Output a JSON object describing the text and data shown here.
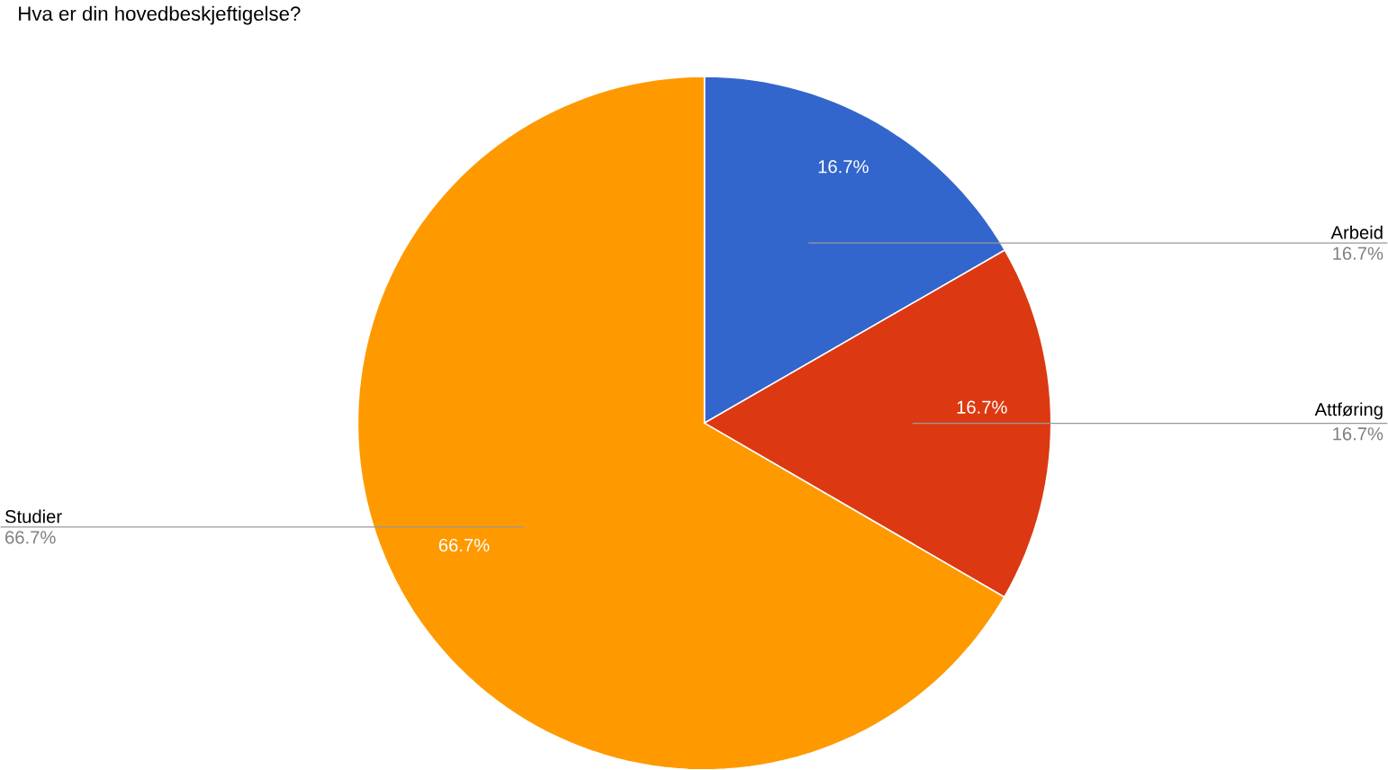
{
  "chart_data": {
    "type": "pie",
    "title": "Hva er din hovedbeskjeftigelse?",
    "categories": [
      "Arbeid",
      "Attføring",
      "Studier"
    ],
    "values": [
      16.7,
      16.7,
      66.7
    ],
    "colors": [
      "#3366cc",
      "#dc3912",
      "#ff9900"
    ],
    "value_labels": [
      "16.7%",
      "16.7%",
      "66.7%"
    ]
  }
}
